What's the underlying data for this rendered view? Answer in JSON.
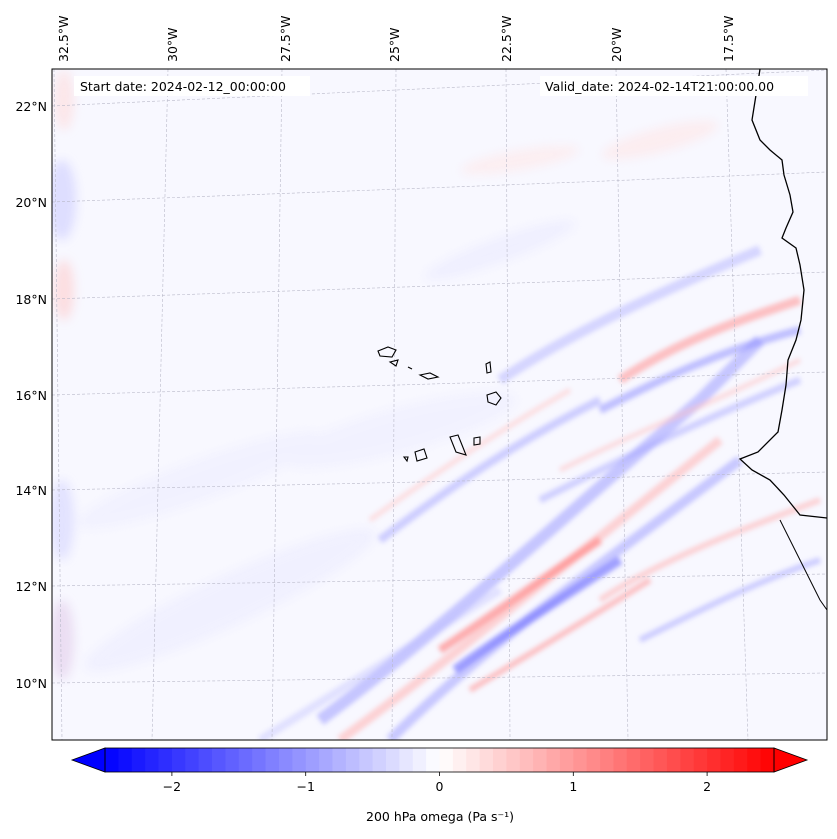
{
  "header": {
    "start_date": "Start date: 2024-02-12_00:00:00",
    "valid_date": "Valid_date: 2024-02-14T21:00:00.00"
  },
  "map": {
    "longitude_labels": [
      "32.5°W",
      "30°W",
      "27.5°W",
      "25°W",
      "22.5°W",
      "20°W",
      "17.5°W"
    ],
    "latitude_labels": [
      "22°N",
      "20°N",
      "18°N",
      "16°N",
      "14°N",
      "12°N",
      "10°N"
    ]
  },
  "colorbar": {
    "label": "200 hPa omega (Pa s⁻¹)",
    "ticks": [
      "−2",
      "−1",
      "0",
      "1",
      "2"
    ],
    "tick_values": [
      -2,
      -1,
      0,
      1,
      2
    ],
    "range": [
      -2.5,
      2.5
    ],
    "colors": {
      "negative": "#0000ff",
      "zero": "#ffffff",
      "positive": "#ff0000"
    }
  }
}
